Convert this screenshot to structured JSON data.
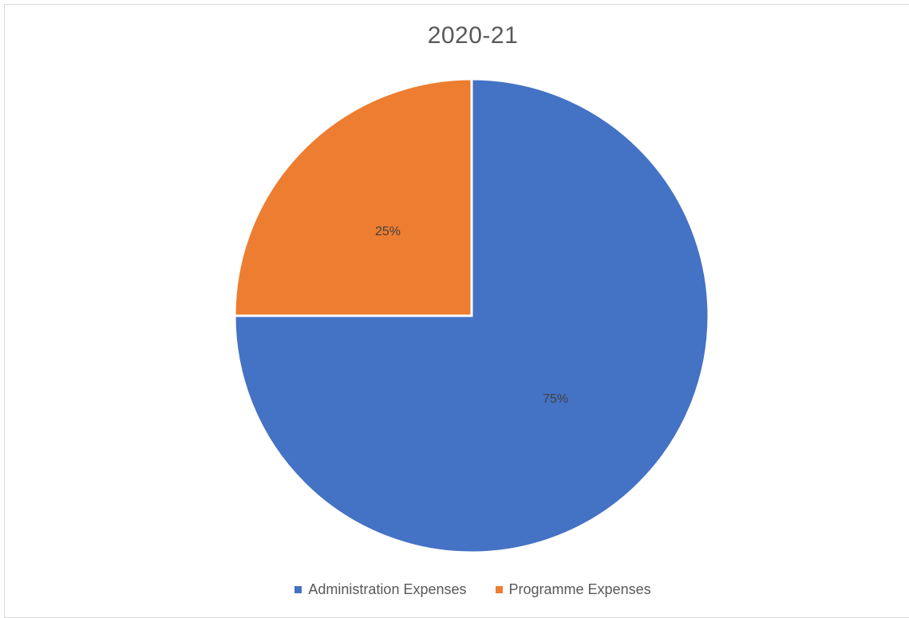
{
  "chart_data": {
    "type": "pie",
    "title": "2020-21",
    "categories": [
      "Administration Expenses",
      "Programme Expenses"
    ],
    "values": [
      75,
      25
    ],
    "data_labels": [
      "75%",
      "25%"
    ],
    "colors": [
      "#4472c4",
      "#ed7d31"
    ],
    "legend_position": "bottom"
  }
}
